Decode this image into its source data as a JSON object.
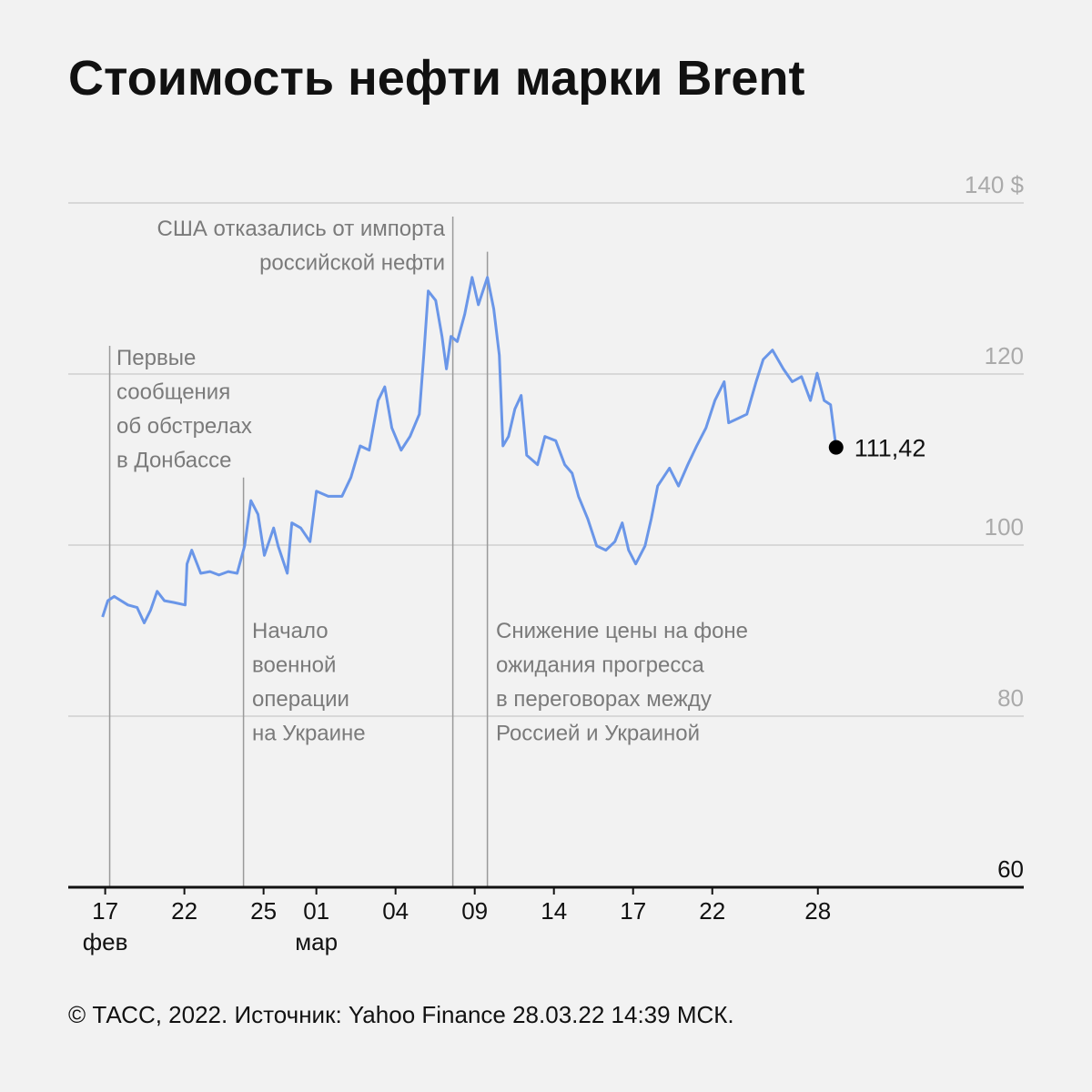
{
  "chart_data": {
    "type": "line",
    "title": "Стоимость нефти марки Brent",
    "footer": "© ТАСС, 2022. Источник: Yahoo Finance 28.03.22 14:39 МСК.",
    "xlim": [
      -1.4,
      34.8
    ],
    "ylim": [
      60,
      140
    ],
    "grid": true,
    "yticks": [
      60,
      80,
      100,
      120,
      {
        "value": 140,
        "label": "140 $"
      }
    ],
    "xticks": [
      {
        "value": 0,
        "label": "17"
      },
      {
        "value": 3,
        "label": "22"
      },
      {
        "value": 6,
        "label": "25"
      },
      {
        "value": 8,
        "label": "01"
      },
      {
        "value": 11,
        "label": "04"
      },
      {
        "value": 14,
        "label": "09"
      },
      {
        "value": 17,
        "label": "14"
      },
      {
        "value": 20,
        "label": "17"
      },
      {
        "value": 23,
        "label": "22"
      },
      {
        "value": 27,
        "label": "28"
      }
    ],
    "month_labels": [
      {
        "x": 0,
        "text": "фев"
      },
      {
        "x": 8,
        "text": "мар"
      }
    ],
    "series": [
      {
        "name": "Brent",
        "color": "#6a96e8",
        "x": [
          -0.1,
          0.1,
          0.34,
          0.86,
          1.21,
          1.48,
          1.72,
          1.97,
          2.24,
          2.59,
          3.03,
          3.1,
          3.28,
          3.62,
          3.97,
          4.31,
          4.66,
          5,
          5.28,
          5.52,
          5.79,
          6.03,
          6.38,
          6.55,
          6.9,
          7.07,
          7.41,
          7.76,
          8,
          8.45,
          8.97,
          9.31,
          9.66,
          10,
          10.34,
          10.59,
          10.86,
          11.21,
          11.55,
          11.9,
          12.07,
          12.24,
          12.52,
          12.76,
          12.93,
          13.1,
          13.34,
          13.62,
          13.9,
          14.14,
          14.48,
          14.72,
          14.93,
          15.07,
          15.28,
          15.52,
          15.76,
          15.97,
          16.38,
          16.66,
          17.07,
          17.41,
          17.69,
          17.93,
          18.28,
          18.62,
          18.97,
          19.31,
          19.59,
          19.83,
          20.1,
          20.45,
          20.69,
          20.93,
          21.38,
          21.72,
          22.07,
          22.41,
          22.76,
          23.1,
          23.45,
          23.62,
          23.97,
          24.31,
          24.66,
          24.93,
          25.28,
          25.69,
          26.03,
          26.38,
          26.72,
          26.97,
          27.24,
          27.48,
          27.69
        ],
        "values": [
          91.6,
          93.5,
          94,
          93,
          92.7,
          90.9,
          92.4,
          94.6,
          93.5,
          93.3,
          93,
          97.8,
          99.4,
          96.7,
          96.9,
          96.5,
          96.9,
          96.7,
          99.9,
          105.2,
          103.6,
          98.8,
          102,
          99.9,
          96.7,
          102.6,
          102,
          100.4,
          106.3,
          105.7,
          105.7,
          107.9,
          111.6,
          111.1,
          116.9,
          118.5,
          113.7,
          111.1,
          112.7,
          115.3,
          122.2,
          129.7,
          128.6,
          124.4,
          120.6,
          124.4,
          123.8,
          127,
          131.3,
          128.1,
          131.3,
          127.6,
          122.2,
          111.6,
          112.7,
          115.9,
          117.5,
          110.5,
          109.4,
          112.7,
          112.2,
          109.4,
          108.4,
          105.7,
          103.1,
          99.9,
          99.4,
          100.4,
          102.6,
          99.4,
          97.8,
          99.9,
          103.1,
          106.9,
          109,
          106.9,
          109.4,
          111.6,
          113.7,
          116.9,
          119.1,
          114.3,
          114.8,
          115.3,
          119.1,
          121.7,
          122.8,
          120.6,
          119.1,
          119.7,
          116.9,
          120.1,
          116.9,
          116.4,
          111.42
        ]
      }
    ],
    "last_value": 111.42,
    "last_value_label": "111,42",
    "annotations": [
      {
        "x": 0.17,
        "y_top": 123.3,
        "lines": [
          "Первые",
          "сообщения",
          "об обстрелах",
          "в Донбассе"
        ]
      },
      {
        "x": 5.24,
        "y_top": 107.9,
        "lines": [
          "Начало",
          "военной",
          "операции",
          "на Украине"
        ]
      },
      {
        "x": 13.17,
        "y_top": 138.4,
        "lines": [
          "США отказались от импорта",
          "российской нефти"
        ]
      },
      {
        "x": 14.48,
        "y_top": 134.3,
        "lines": [
          "Снижение цены на фоне",
          "ожидания прогресса",
          "в переговорах между",
          "Россией и Украиной"
        ]
      }
    ]
  }
}
